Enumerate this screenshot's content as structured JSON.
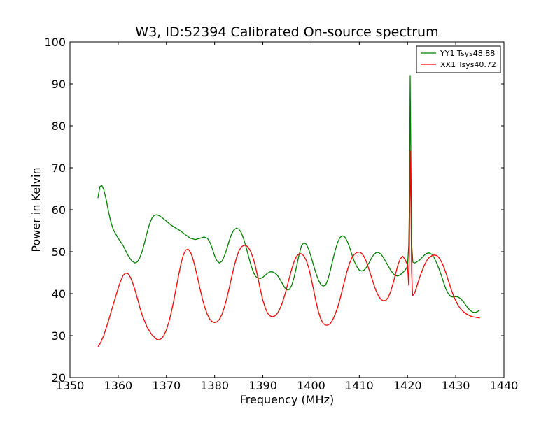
{
  "chart_data": {
    "type": "line",
    "title": "W3, ID:52394 Calibrated On-source spectrum",
    "xlabel": "Frequency (MHz)",
    "ylabel": "Power in Kelvin",
    "xlim": [
      1350,
      1440
    ],
    "ylim": [
      20,
      100
    ],
    "xticks": [
      1350,
      1360,
      1370,
      1380,
      1390,
      1400,
      1410,
      1420,
      1430,
      1440
    ],
    "yticks": [
      20,
      30,
      40,
      50,
      60,
      70,
      80,
      90,
      100
    ],
    "grid": false,
    "legend_position": "top-right",
    "series": [
      {
        "name": "YY1 Tsys48.88",
        "color": "#008000",
        "points": [
          [
            1355.8,
            62.8
          ],
          [
            1356.2,
            65.5
          ],
          [
            1356.6,
            65.8
          ],
          [
            1357.0,
            64.8
          ],
          [
            1357.5,
            62.5
          ],
          [
            1358.0,
            59.5
          ],
          [
            1358.5,
            57.0
          ],
          [
            1359.0,
            55.2
          ],
          [
            1360.0,
            53.2
          ],
          [
            1361.0,
            51.5
          ],
          [
            1362.0,
            49.2
          ],
          [
            1362.8,
            47.8
          ],
          [
            1363.5,
            47.3
          ],
          [
            1364.0,
            47.6
          ],
          [
            1364.5,
            48.6
          ],
          [
            1365.0,
            50.2
          ],
          [
            1365.5,
            52.3
          ],
          [
            1366.0,
            54.6
          ],
          [
            1366.5,
            56.6
          ],
          [
            1367.0,
            58.0
          ],
          [
            1367.5,
            58.7
          ],
          [
            1368.0,
            58.8
          ],
          [
            1368.5,
            58.6
          ],
          [
            1369.0,
            58.2
          ],
          [
            1370.0,
            57.3
          ],
          [
            1371.0,
            56.3
          ],
          [
            1372.0,
            55.6
          ],
          [
            1373.0,
            54.9
          ],
          [
            1374.0,
            54.0
          ],
          [
            1375.0,
            53.2
          ],
          [
            1376.0,
            52.9
          ],
          [
            1377.0,
            53.2
          ],
          [
            1377.8,
            53.5
          ],
          [
            1378.5,
            53.2
          ],
          [
            1379.0,
            52.3
          ],
          [
            1379.5,
            50.8
          ],
          [
            1380.0,
            49.0
          ],
          [
            1380.5,
            47.8
          ],
          [
            1381.0,
            47.3
          ],
          [
            1381.5,
            47.7
          ],
          [
            1382.0,
            48.9
          ],
          [
            1382.5,
            50.6
          ],
          [
            1383.0,
            52.5
          ],
          [
            1383.5,
            54.2
          ],
          [
            1384.0,
            55.2
          ],
          [
            1384.5,
            55.6
          ],
          [
            1385.0,
            55.4
          ],
          [
            1385.5,
            54.6
          ],
          [
            1386.0,
            53.1
          ],
          [
            1386.5,
            51.2
          ],
          [
            1387.0,
            49.0
          ],
          [
            1387.5,
            46.9
          ],
          [
            1388.0,
            45.2
          ],
          [
            1388.5,
            44.1
          ],
          [
            1389.0,
            43.7
          ],
          [
            1389.5,
            43.6
          ],
          [
            1390.0,
            43.9
          ],
          [
            1390.5,
            44.4
          ],
          [
            1391.0,
            44.9
          ],
          [
            1391.5,
            45.2
          ],
          [
            1392.0,
            45.2
          ],
          [
            1392.5,
            44.9
          ],
          [
            1393.0,
            44.4
          ],
          [
            1393.5,
            43.5
          ],
          [
            1394.0,
            42.5
          ],
          [
            1394.5,
            41.5
          ],
          [
            1395.0,
            40.9
          ],
          [
            1395.5,
            41.0
          ],
          [
            1396.0,
            42.0
          ],
          [
            1396.5,
            44.0
          ],
          [
            1397.0,
            46.5
          ],
          [
            1397.5,
            49.2
          ],
          [
            1398.0,
            51.4
          ],
          [
            1398.5,
            52.1
          ],
          [
            1399.0,
            51.8
          ],
          [
            1399.5,
            50.6
          ],
          [
            1400.0,
            48.8
          ],
          [
            1400.5,
            46.8
          ],
          [
            1401.0,
            44.9
          ],
          [
            1401.5,
            43.3
          ],
          [
            1402.0,
            42.2
          ],
          [
            1402.5,
            41.8
          ],
          [
            1403.0,
            42.0
          ],
          [
            1403.5,
            43.4
          ],
          [
            1404.0,
            45.5
          ],
          [
            1404.5,
            48.0
          ],
          [
            1405.0,
            50.3
          ],
          [
            1405.5,
            52.2
          ],
          [
            1406.0,
            53.4
          ],
          [
            1406.5,
            53.8
          ],
          [
            1407.0,
            53.5
          ],
          [
            1407.5,
            52.5
          ],
          [
            1408.0,
            51.0
          ],
          [
            1408.5,
            49.2
          ],
          [
            1409.0,
            47.6
          ],
          [
            1409.5,
            46.4
          ],
          [
            1410.0,
            45.6
          ],
          [
            1410.5,
            45.4
          ],
          [
            1411.0,
            45.6
          ],
          [
            1411.5,
            46.3
          ],
          [
            1412.0,
            47.3
          ],
          [
            1412.5,
            48.4
          ],
          [
            1413.0,
            49.3
          ],
          [
            1413.5,
            49.8
          ],
          [
            1414.0,
            49.8
          ],
          [
            1414.5,
            49.4
          ],
          [
            1415.0,
            48.6
          ],
          [
            1415.5,
            47.6
          ],
          [
            1416.0,
            46.6
          ],
          [
            1416.5,
            45.6
          ],
          [
            1417.0,
            44.8
          ],
          [
            1417.5,
            44.3
          ],
          [
            1418.0,
            44.2
          ],
          [
            1418.5,
            44.5
          ],
          [
            1419.0,
            45.0
          ],
          [
            1419.5,
            45.6
          ],
          [
            1420.0,
            46.5
          ],
          [
            1420.25,
            51.5
          ],
          [
            1420.4,
            62.0
          ],
          [
            1420.55,
            92.0
          ],
          [
            1420.7,
            72.0
          ],
          [
            1420.85,
            52.0
          ],
          [
            1421.1,
            47.5
          ],
          [
            1421.5,
            47.3
          ],
          [
            1422.0,
            47.6
          ],
          [
            1422.5,
            48.0
          ],
          [
            1423.0,
            48.6
          ],
          [
            1423.5,
            49.2
          ],
          [
            1424.0,
            49.6
          ],
          [
            1424.5,
            49.7
          ],
          [
            1425.0,
            49.4
          ],
          [
            1425.5,
            48.6
          ],
          [
            1426.0,
            47.4
          ],
          [
            1426.5,
            46.0
          ],
          [
            1427.0,
            44.4
          ],
          [
            1427.5,
            42.6
          ],
          [
            1428.0,
            41.0
          ],
          [
            1428.5,
            39.9
          ],
          [
            1429.0,
            39.3
          ],
          [
            1429.5,
            39.2
          ],
          [
            1430.0,
            39.3
          ],
          [
            1430.5,
            39.2
          ],
          [
            1431.0,
            38.8
          ],
          [
            1431.5,
            38.2
          ],
          [
            1432.0,
            37.4
          ],
          [
            1432.5,
            36.6
          ],
          [
            1433.0,
            36.0
          ],
          [
            1433.5,
            35.6
          ],
          [
            1434.0,
            35.5
          ],
          [
            1434.5,
            35.7
          ],
          [
            1435.0,
            36.1
          ]
        ]
      },
      {
        "name": "XX1 Tsys40.72",
        "color": "#ff0000",
        "points": [
          [
            1355.8,
            27.4
          ],
          [
            1356.3,
            28.2
          ],
          [
            1357.0,
            30.0
          ],
          [
            1358.0,
            33.6
          ],
          [
            1359.0,
            37.5
          ],
          [
            1360.0,
            41.3
          ],
          [
            1360.5,
            43.0
          ],
          [
            1361.0,
            44.3
          ],
          [
            1361.5,
            44.9
          ],
          [
            1362.0,
            44.8
          ],
          [
            1362.5,
            44.0
          ],
          [
            1363.0,
            42.6
          ],
          [
            1363.5,
            40.8
          ],
          [
            1364.0,
            38.8
          ],
          [
            1364.5,
            36.7
          ],
          [
            1365.0,
            34.8
          ],
          [
            1366.0,
            32.0
          ],
          [
            1367.0,
            30.2
          ],
          [
            1368.0,
            29.1
          ],
          [
            1368.5,
            29.0
          ],
          [
            1369.0,
            29.3
          ],
          [
            1369.5,
            30.1
          ],
          [
            1370.0,
            31.4
          ],
          [
            1370.5,
            33.2
          ],
          [
            1371.0,
            35.5
          ],
          [
            1371.5,
            38.2
          ],
          [
            1372.0,
            41.2
          ],
          [
            1372.5,
            44.2
          ],
          [
            1373.0,
            47.0
          ],
          [
            1373.5,
            49.2
          ],
          [
            1374.0,
            50.4
          ],
          [
            1374.5,
            50.6
          ],
          [
            1375.0,
            49.9
          ],
          [
            1375.5,
            48.3
          ],
          [
            1376.0,
            46.1
          ],
          [
            1376.5,
            43.6
          ],
          [
            1377.0,
            41.0
          ],
          [
            1377.5,
            38.6
          ],
          [
            1378.0,
            36.6
          ],
          [
            1378.5,
            35.0
          ],
          [
            1379.0,
            33.9
          ],
          [
            1379.5,
            33.3
          ],
          [
            1380.0,
            33.1
          ],
          [
            1380.5,
            33.3
          ],
          [
            1381.0,
            33.9
          ],
          [
            1381.5,
            35.0
          ],
          [
            1382.0,
            36.7
          ],
          [
            1382.5,
            38.8
          ],
          [
            1383.0,
            41.2
          ],
          [
            1383.5,
            43.8
          ],
          [
            1384.0,
            46.3
          ],
          [
            1384.5,
            48.4
          ],
          [
            1385.0,
            50.1
          ],
          [
            1385.5,
            51.1
          ],
          [
            1386.0,
            51.5
          ],
          [
            1386.5,
            51.5
          ],
          [
            1387.0,
            51.0
          ],
          [
            1387.5,
            50.0
          ],
          [
            1388.0,
            48.4
          ],
          [
            1388.5,
            46.3
          ],
          [
            1389.0,
            43.7
          ],
          [
            1389.5,
            40.9
          ],
          [
            1390.0,
            38.4
          ],
          [
            1390.5,
            36.6
          ],
          [
            1391.0,
            35.3
          ],
          [
            1391.5,
            34.7
          ],
          [
            1392.0,
            34.5
          ],
          [
            1392.5,
            34.7
          ],
          [
            1393.0,
            35.3
          ],
          [
            1393.5,
            36.3
          ],
          [
            1394.0,
            37.7
          ],
          [
            1394.5,
            39.5
          ],
          [
            1395.0,
            41.6
          ],
          [
            1395.5,
            43.8
          ],
          [
            1396.0,
            45.9
          ],
          [
            1396.5,
            47.7
          ],
          [
            1397.0,
            48.9
          ],
          [
            1397.5,
            49.5
          ],
          [
            1398.0,
            49.5
          ],
          [
            1398.5,
            49.0
          ],
          [
            1399.0,
            47.9
          ],
          [
            1399.5,
            46.2
          ],
          [
            1400.0,
            43.8
          ],
          [
            1400.5,
            41.0
          ],
          [
            1401.0,
            38.2
          ],
          [
            1401.5,
            35.8
          ],
          [
            1402.0,
            34.0
          ],
          [
            1402.5,
            32.9
          ],
          [
            1403.0,
            32.5
          ],
          [
            1403.5,
            32.5
          ],
          [
            1404.0,
            32.9
          ],
          [
            1404.5,
            33.8
          ],
          [
            1405.0,
            35.1
          ],
          [
            1405.5,
            36.7
          ],
          [
            1406.0,
            38.7
          ],
          [
            1406.5,
            41.0
          ],
          [
            1407.0,
            43.3
          ],
          [
            1407.5,
            45.5
          ],
          [
            1408.0,
            47.3
          ],
          [
            1408.5,
            48.6
          ],
          [
            1409.0,
            49.4
          ],
          [
            1409.5,
            49.8
          ],
          [
            1410.0,
            49.9
          ],
          [
            1410.5,
            49.6
          ],
          [
            1411.0,
            48.8
          ],
          [
            1411.5,
            47.5
          ],
          [
            1412.0,
            45.8
          ],
          [
            1412.5,
            44.0
          ],
          [
            1413.0,
            42.2
          ],
          [
            1413.5,
            40.6
          ],
          [
            1414.0,
            39.4
          ],
          [
            1414.5,
            38.6
          ],
          [
            1415.0,
            38.3
          ],
          [
            1415.5,
            38.4
          ],
          [
            1416.0,
            39.1
          ],
          [
            1416.5,
            40.5
          ],
          [
            1417.0,
            42.4
          ],
          [
            1417.5,
            44.6
          ],
          [
            1418.0,
            46.8
          ],
          [
            1418.5,
            48.3
          ],
          [
            1419.0,
            48.9
          ],
          [
            1419.5,
            48.1
          ],
          [
            1420.0,
            46.8
          ],
          [
            1420.25,
            42.0
          ],
          [
            1420.4,
            52.0
          ],
          [
            1420.55,
            74.0
          ],
          [
            1420.7,
            62.0
          ],
          [
            1420.85,
            45.0
          ],
          [
            1421.05,
            39.5
          ],
          [
            1421.5,
            40.2
          ],
          [
            1422.0,
            42.0
          ],
          [
            1422.5,
            43.8
          ],
          [
            1423.0,
            45.4
          ],
          [
            1423.5,
            46.8
          ],
          [
            1424.0,
            47.9
          ],
          [
            1424.5,
            48.6
          ],
          [
            1425.0,
            49.0
          ],
          [
            1425.5,
            49.2
          ],
          [
            1426.0,
            49.1
          ],
          [
            1426.5,
            48.6
          ],
          [
            1427.0,
            47.7
          ],
          [
            1427.5,
            46.4
          ],
          [
            1428.0,
            44.8
          ],
          [
            1428.5,
            43.0
          ],
          [
            1429.0,
            41.2
          ],
          [
            1429.5,
            39.6
          ],
          [
            1430.0,
            38.3
          ],
          [
            1430.5,
            37.2
          ],
          [
            1431.0,
            36.4
          ],
          [
            1431.5,
            35.8
          ],
          [
            1432.0,
            35.3
          ],
          [
            1432.5,
            35.0
          ],
          [
            1433.0,
            34.7
          ],
          [
            1433.5,
            34.5
          ],
          [
            1434.0,
            34.4
          ],
          [
            1434.5,
            34.3
          ],
          [
            1435.0,
            34.2
          ]
        ]
      }
    ]
  }
}
